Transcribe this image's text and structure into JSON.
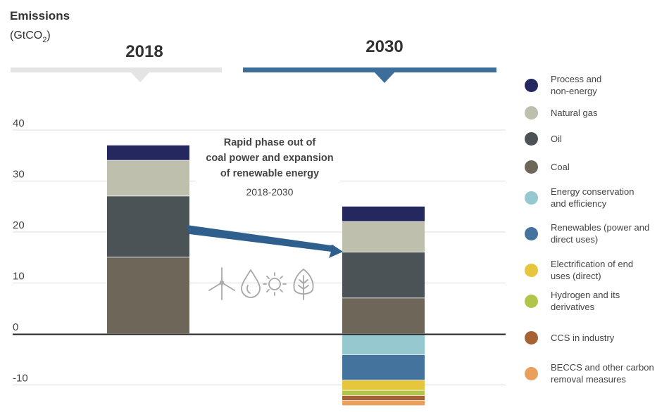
{
  "chart_data": {
    "type": "bar",
    "stacked": true,
    "title": "Emissions",
    "ylabel": "(GtCO2)",
    "ylabel_prefix": "(GtCO",
    "ylabel_subscript": "2",
    "ylabel_suffix": ")",
    "ylim": [
      -14,
      50
    ],
    "yticks": [
      40,
      30,
      20,
      10,
      0,
      -10
    ],
    "categories": [
      "2018",
      "2030"
    ],
    "series": [
      {
        "name": "Process and non-energy",
        "color": "#25285e",
        "values": [
          3,
          3
        ],
        "label_lines": [
          "Process and",
          "non-energy"
        ]
      },
      {
        "name": "Natural gas",
        "color": "#bfbfad",
        "values": [
          7,
          6
        ],
        "label_lines": [
          "Natural gas"
        ]
      },
      {
        "name": "Oil",
        "color": "#4c5357",
        "values": [
          12,
          9
        ],
        "label_lines": [
          "Oil"
        ]
      },
      {
        "name": "Coal",
        "color": "#6e6658",
        "values": [
          15,
          7
        ],
        "label_lines": [
          "Coal"
        ]
      },
      {
        "name": "Energy conservation and efficiency",
        "color": "#95c9cf",
        "values": [
          0,
          -4
        ],
        "label_lines": [
          "Energy conservation",
          "and efficiency"
        ]
      },
      {
        "name": "Renewables (power and direct uses)",
        "color": "#44749d",
        "values": [
          0,
          -5
        ],
        "label_lines": [
          "Renewables (power and",
          "direct uses)"
        ]
      },
      {
        "name": "Electrification of end uses (direct)",
        "color": "#e6c63d",
        "values": [
          0,
          -2
        ],
        "label_lines": [
          "Electrification of end",
          "uses (direct)"
        ]
      },
      {
        "name": "Hydrogen and its derivatives",
        "color": "#b1c54a",
        "values": [
          0,
          -1
        ],
        "label_lines": [
          "Hydrogen and its",
          "derivatives"
        ]
      },
      {
        "name": "CCS in industry",
        "color": "#a66135",
        "values": [
          0,
          -1
        ],
        "label_lines": [
          "CCS in industry"
        ]
      },
      {
        "name": "BECCS and other carbon removal measures",
        "color": "#e9a05c",
        "values": [
          0,
          -1
        ],
        "label_lines": [
          "BECCS and other carbon",
          "removal measures"
        ]
      }
    ],
    "annotation": {
      "lines": [
        "Rapid phase out of",
        "coal power and expansion",
        "of renewable energy"
      ],
      "period": "2018-2030"
    },
    "icons": [
      "wind-turbine-icon",
      "water-drop-icon",
      "sun-icon",
      "leaf-icon"
    ]
  },
  "colors": {
    "header_2018": "#e4e4e4",
    "header_2030": "#3d6d9a",
    "arrow": "#2f5f8c",
    "axis": "#222222",
    "grid": "#dcdcdc",
    "icon": "#a7a7a7"
  }
}
